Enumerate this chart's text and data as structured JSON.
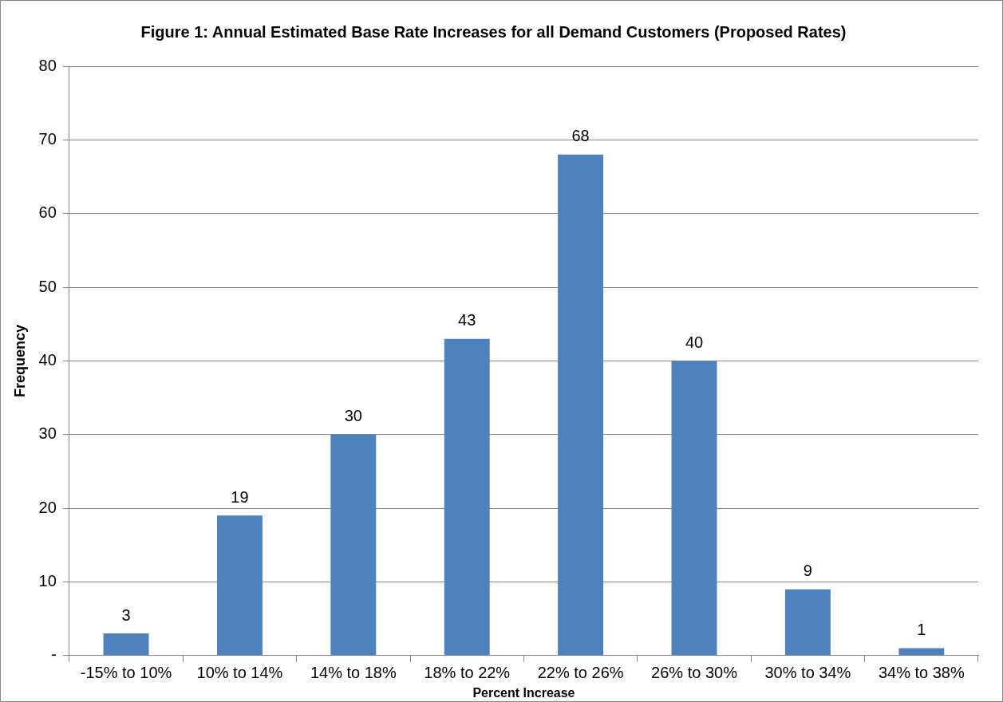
{
  "chart_data": {
    "type": "bar",
    "title": "Figure 1: Annual Estimated Base Rate Increases for all Demand Customers (Proposed Rates)",
    "xlabel": "Percent Increase",
    "ylabel": "Frequency",
    "categories": [
      "-15% to 10%",
      "10% to 14%",
      "14% to 18%",
      "18% to 22%",
      "22% to 26%",
      "26% to 30%",
      "30% to 34%",
      "34% to 38%"
    ],
    "values": [
      3,
      19,
      30,
      43,
      68,
      40,
      9,
      1
    ],
    "color": "#4f81bd",
    "ylim": [
      0,
      80
    ],
    "yticks": [
      {
        "value": 0,
        "label": "-"
      },
      10,
      20,
      30,
      40,
      50,
      60,
      70,
      80
    ],
    "grid": "y",
    "data_labels": true,
    "legend": false
  }
}
